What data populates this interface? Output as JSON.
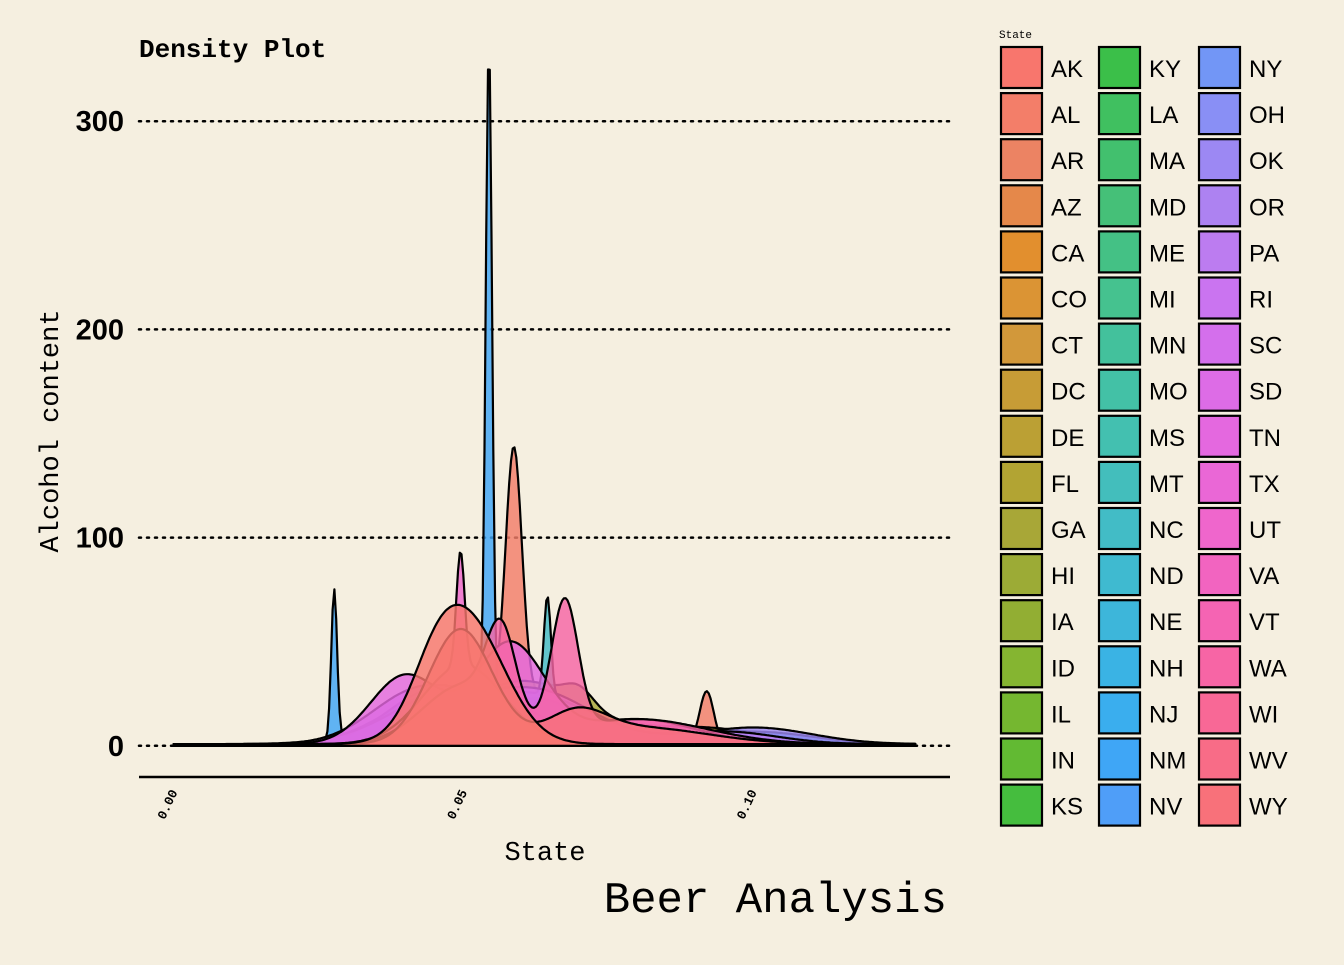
{
  "chart_data": {
    "type": "area",
    "title": "Density Plot",
    "caption": "Beer Analysis",
    "xlabel": "State",
    "ylabel": "Alcohol content",
    "xlim": [
      -0.006,
      0.134
    ],
    "ylim": [
      -15,
      315
    ],
    "x_ticks": [
      0.0,
      0.05,
      0.1
    ],
    "x_tick_labels": [
      "0.00",
      "0.05",
      "0.10"
    ],
    "y_ticks": [
      0,
      100,
      200,
      300
    ],
    "y_tick_labels": [
      "0",
      "100",
      "200",
      "300"
    ],
    "grid": "horizontal-dotted",
    "legend": {
      "title": "State",
      "placement": "right",
      "columns": 3,
      "entries": [
        {
          "label": "AK",
          "color": "#F8766D"
        },
        {
          "label": "AL",
          "color": "#F37E69"
        },
        {
          "label": "AR",
          "color": "#EC8363"
        },
        {
          "label": "AZ",
          "color": "#E5884A"
        },
        {
          "label": "CA",
          "color": "#E28F2E"
        },
        {
          "label": "CO",
          "color": "#DB9434"
        },
        {
          "label": "CT",
          "color": "#D2983A"
        },
        {
          "label": "DC",
          "color": "#C79C36"
        },
        {
          "label": "DE",
          "color": "#BBA034"
        },
        {
          "label": "FL",
          "color": "#B2A433"
        },
        {
          "label": "GA",
          "color": "#A8A737"
        },
        {
          "label": "HI",
          "color": "#9CAB36"
        },
        {
          "label": "IA",
          "color": "#92AE33"
        },
        {
          "label": "ID",
          "color": "#85B531"
        },
        {
          "label": "IL",
          "color": "#75B730"
        },
        {
          "label": "IN",
          "color": "#62BA33"
        },
        {
          "label": "KS",
          "color": "#45BD3E"
        },
        {
          "label": "KY",
          "color": "#3BBF49"
        },
        {
          "label": "LA",
          "color": "#40C060"
        },
        {
          "label": "MA",
          "color": "#42C06E"
        },
        {
          "label": "MD",
          "color": "#45C078"
        },
        {
          "label": "ME",
          "color": "#44C185"
        },
        {
          "label": "MI",
          "color": "#45C28F"
        },
        {
          "label": "MN",
          "color": "#43C19C"
        },
        {
          "label": "MO",
          "color": "#43C1A6"
        },
        {
          "label": "MS",
          "color": "#43C0B0"
        },
        {
          "label": "MT",
          "color": "#43BEBC"
        },
        {
          "label": "NC",
          "color": "#42BCC6"
        },
        {
          "label": "ND",
          "color": "#3FBAD0"
        },
        {
          "label": "NE",
          "color": "#3DB6DA"
        },
        {
          "label": "NH",
          "color": "#3AB3E4"
        },
        {
          "label": "NJ",
          "color": "#3AAEEE"
        },
        {
          "label": "NM",
          "color": "#3FA6F6"
        },
        {
          "label": "NV",
          "color": "#4F9EF8"
        },
        {
          "label": "NY",
          "color": "#7296F6"
        },
        {
          "label": "OH",
          "color": "#898FF5"
        },
        {
          "label": "OK",
          "color": "#9C88F3"
        },
        {
          "label": "OR",
          "color": "#AD82F1"
        },
        {
          "label": "PA",
          "color": "#BC7CF0"
        },
        {
          "label": "RI",
          "color": "#CA74F0"
        },
        {
          "label": "SC",
          "color": "#D46FEC"
        },
        {
          "label": "SD",
          "color": "#DD6CE6"
        },
        {
          "label": "TN",
          "color": "#E468DF"
        },
        {
          "label": "TX",
          "color": "#EA67D6"
        },
        {
          "label": "UT",
          "color": "#EF66CC"
        },
        {
          "label": "VA",
          "color": "#F264C0"
        },
        {
          "label": "VT",
          "color": "#F564B3"
        },
        {
          "label": "WA",
          "color": "#F765A5"
        },
        {
          "label": "WI",
          "color": "#F86896"
        },
        {
          "label": "WV",
          "color": "#F86C87"
        },
        {
          "label": "WY",
          "color": "#F8717A"
        }
      ]
    },
    "series": [
      {
        "name": "AL",
        "color": "#F37E69",
        "components": [
          [
            0.0587,
            0.0014,
            118
          ],
          [
            0.092,
            0.0012,
            25
          ],
          [
            0.058,
            0.012,
            25
          ]
        ]
      },
      {
        "name": "GA",
        "color": "#A8A737",
        "components": [
          [
            0.07,
            0.0025,
            8
          ],
          [
            0.06,
            0.01,
            30
          ],
          [
            0.09,
            0.012,
            8
          ]
        ]
      },
      {
        "name": "IN",
        "color": "#62BA33",
        "components": [
          [
            0.045,
            0.009,
            22
          ],
          [
            0.065,
            0.01,
            18
          ]
        ]
      },
      {
        "name": "NM",
        "color": "#3FA6F6",
        "components": [
          [
            0.0277,
            0.0005,
            72
          ],
          [
            0.0544,
            0.00055,
            315
          ],
          [
            0.045,
            0.008,
            26
          ],
          [
            0.064,
            0.007,
            20
          ],
          [
            0.1,
            0.01,
            6
          ]
        ]
      },
      {
        "name": "NC",
        "color": "#42BCC6",
        "components": [
          [
            0.0645,
            0.0006,
            48
          ],
          [
            0.06,
            0.012,
            25
          ]
        ]
      },
      {
        "name": "OK",
        "color": "#9C88F3",
        "components": [
          [
            0.05,
            0.011,
            28
          ],
          [
            0.1,
            0.01,
            8
          ]
        ]
      },
      {
        "name": "PA",
        "color": "#BC7CF0",
        "components": [
          [
            0.042,
            0.008,
            24
          ],
          [
            0.062,
            0.01,
            26
          ],
          [
            0.095,
            0.009,
            6
          ]
        ]
      },
      {
        "name": "TN",
        "color": "#E468DF",
        "components": [
          [
            0.04,
            0.006,
            33
          ],
          [
            0.058,
            0.006,
            48
          ],
          [
            0.08,
            0.01,
            12
          ]
        ]
      },
      {
        "name": "UT",
        "color": "#EF66CC",
        "components": [
          [
            0.0495,
            0.0007,
            55
          ],
          [
            0.05,
            0.007,
            38
          ]
        ]
      },
      {
        "name": "WA",
        "color": "#F765A5",
        "components": [
          [
            0.0565,
            0.0025,
            40
          ],
          [
            0.0675,
            0.0023,
            62
          ],
          [
            0.05,
            0.007,
            28
          ],
          [
            0.08,
            0.012,
            12
          ]
        ]
      },
      {
        "name": "WY",
        "color": "#F8717A",
        "components": [
          [
            0.0495,
            0.0055,
            55
          ],
          [
            0.0695,
            0.005,
            12
          ],
          [
            0.08,
            0.012,
            8
          ]
        ]
      },
      {
        "name": "AK",
        "color": "#F8766D",
        "components": [
          [
            0.0505,
            0.0065,
            60
          ],
          [
            0.045,
            0.004,
            14
          ]
        ]
      }
    ]
  }
}
